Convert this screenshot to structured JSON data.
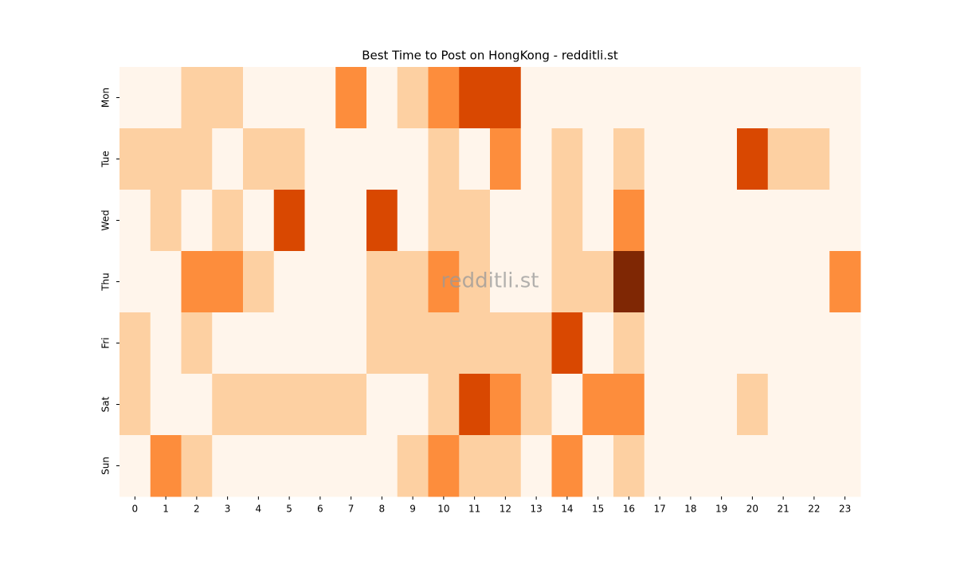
{
  "chart_data": {
    "type": "heatmap",
    "title": "Best Time to Post on HongKong - redditli.st",
    "watermark": "redditli.st",
    "x_categories": [
      "0",
      "1",
      "2",
      "3",
      "4",
      "5",
      "6",
      "7",
      "8",
      "9",
      "10",
      "11",
      "12",
      "13",
      "14",
      "15",
      "16",
      "17",
      "18",
      "19",
      "20",
      "21",
      "22",
      "23"
    ],
    "y_categories": [
      "Mon",
      "Tue",
      "Wed",
      "Thu",
      "Fri",
      "Sat",
      "Sun"
    ],
    "values": [
      [
        0,
        0,
        1,
        1,
        0,
        0,
        0,
        2,
        0,
        1,
        2,
        3,
        3,
        0,
        0,
        0,
        0,
        0,
        0,
        0,
        0,
        0,
        0,
        0
      ],
      [
        1,
        1,
        1,
        0,
        1,
        1,
        0,
        0,
        0,
        0,
        1,
        0,
        2,
        0,
        1,
        0,
        1,
        0,
        0,
        0,
        3,
        1,
        1,
        0
      ],
      [
        0,
        1,
        0,
        1,
        0,
        3,
        0,
        0,
        3,
        0,
        1,
        1,
        0,
        0,
        1,
        0,
        2,
        0,
        0,
        0,
        0,
        0,
        0,
        0
      ],
      [
        0,
        0,
        2,
        2,
        1,
        0,
        0,
        0,
        1,
        1,
        2,
        1,
        0,
        0,
        1,
        1,
        4,
        0,
        0,
        0,
        0,
        0,
        0,
        2
      ],
      [
        1,
        0,
        1,
        0,
        0,
        0,
        0,
        0,
        1,
        1,
        1,
        1,
        1,
        1,
        3,
        0,
        1,
        0,
        0,
        0,
        0,
        0,
        0,
        0
      ],
      [
        1,
        0,
        0,
        1,
        1,
        1,
        1,
        1,
        0,
        0,
        1,
        3,
        2,
        1,
        0,
        2,
        2,
        0,
        0,
        0,
        1,
        0,
        0,
        0
      ],
      [
        0,
        2,
        1,
        0,
        0,
        0,
        0,
        0,
        0,
        1,
        2,
        1,
        1,
        0,
        2,
        0,
        1,
        0,
        0,
        0,
        0,
        0,
        0,
        0
      ]
    ],
    "colors": [
      "#fff5eb",
      "#fdd0a2",
      "#fd8d3c",
      "#d94801",
      "#7f2704"
    ]
  }
}
